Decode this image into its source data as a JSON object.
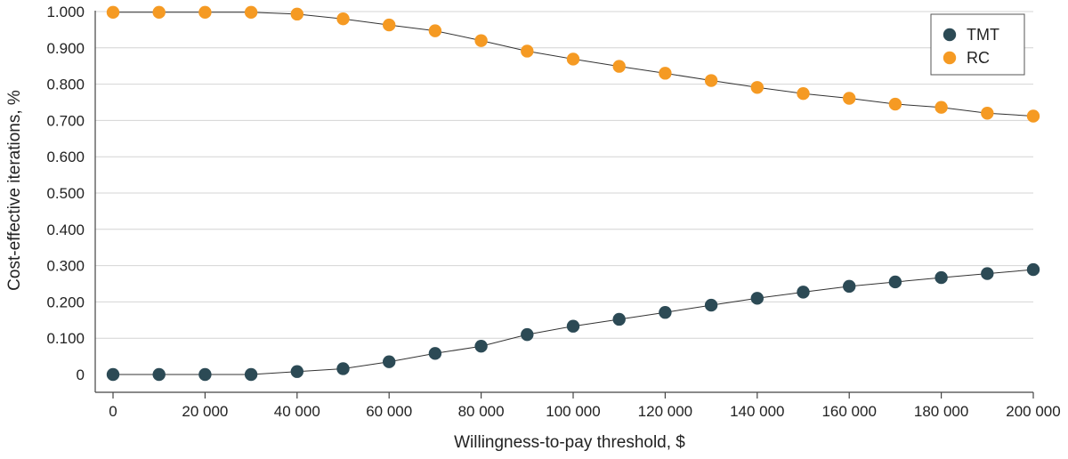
{
  "chart_data": {
    "type": "line",
    "xlabel": "Willingness-to-pay threshold, $",
    "ylabel": "Cost-effective iterations, %",
    "xlim": [
      0,
      200000
    ],
    "ylim": [
      0,
      1.0
    ],
    "x_ticks": [
      0,
      20000,
      40000,
      60000,
      80000,
      100000,
      120000,
      140000,
      160000,
      180000,
      200000
    ],
    "x_tick_labels": [
      "0",
      "20 000",
      "40 000",
      "60 000",
      "80 000",
      "100 000",
      "120 000",
      "140 000",
      "160 000",
      "180 000",
      "200 000"
    ],
    "y_ticks": [
      0,
      0.1,
      0.2,
      0.3,
      0.4,
      0.5,
      0.6,
      0.7,
      0.8,
      0.9,
      1.0
    ],
    "y_tick_labels": [
      "0",
      "0.100",
      "0.200",
      "0.300",
      "0.400",
      "0.500",
      "0.600",
      "0.700",
      "0.800",
      "0.900",
      "1.000"
    ],
    "grid": true,
    "legend_position": "top-right",
    "x": [
      0,
      10000,
      20000,
      30000,
      40000,
      50000,
      60000,
      70000,
      80000,
      90000,
      100000,
      110000,
      120000,
      130000,
      140000,
      150000,
      160000,
      170000,
      180000,
      190000,
      200000
    ],
    "series": [
      {
        "name": "TMT",
        "color": "#2c4a55",
        "values": [
          0.0,
          0.0,
          0.0,
          0.0,
          0.008,
          0.016,
          0.035,
          0.058,
          0.078,
          0.11,
          0.133,
          0.152,
          0.171,
          0.191,
          0.21,
          0.227,
          0.243,
          0.255,
          0.267,
          0.278,
          0.289
        ]
      },
      {
        "name": "RC",
        "color": "#f59a23",
        "values": [
          0.998,
          0.998,
          0.998,
          0.998,
          0.993,
          0.98,
          0.963,
          0.947,
          0.92,
          0.891,
          0.869,
          0.849,
          0.83,
          0.81,
          0.791,
          0.774,
          0.761,
          0.745,
          0.736,
          0.72,
          0.712
        ]
      }
    ]
  }
}
